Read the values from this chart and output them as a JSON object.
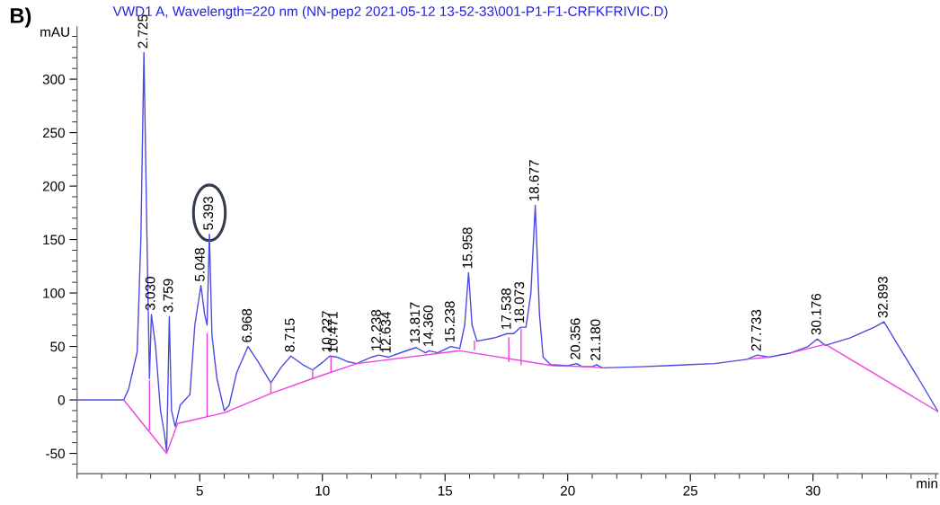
{
  "chart_data": {
    "type": "line",
    "title": "VWD1 A, Wavelength=220 nm (NN-pep2 2021-05-12 13-52-33\\001-P1-F1-CRFKFRIVIC.D)",
    "ylabel": "mAU",
    "xlabel": "min",
    "xlim": [
      0,
      35.1
    ],
    "ylim": [
      -69,
      349
    ],
    "xticks": [
      5,
      10,
      15,
      20,
      25,
      30
    ],
    "yticks": [
      -50,
      0,
      50,
      100,
      150,
      200,
      250,
      300
    ],
    "grid": false,
    "marker": "none",
    "line_style": "solid",
    "series": [
      {
        "color": "#4a4ae0",
        "x": [
          0,
          1.9,
          2.1,
          2.3,
          2.45,
          2.6,
          2.725,
          2.85,
          2.95,
          3.03,
          3.2,
          3.4,
          3.55,
          3.65,
          3.72,
          3.759,
          3.85,
          4.0,
          4.2,
          4.4,
          4.6,
          4.8,
          5.048,
          5.2,
          5.3,
          5.393,
          5.5,
          5.7,
          6.0,
          6.2,
          6.5,
          6.968,
          7.4,
          7.9,
          8.3,
          8.715,
          9.2,
          9.6,
          10.0,
          10.3,
          10.6,
          11.0,
          11.4,
          12.0,
          12.3,
          12.7,
          13.3,
          13.817,
          14.2,
          14.36,
          14.7,
          15.238,
          15.6,
          15.8,
          15.958,
          16.1,
          16.3,
          17.0,
          17.538,
          17.8,
          18.073,
          18.3,
          18.5,
          18.677,
          18.85,
          19.0,
          19.3,
          20.0,
          20.356,
          20.6,
          21.0,
          21.18,
          21.4,
          23,
          24,
          26,
          27.3,
          27.733,
          28.2,
          29.1,
          29.8,
          30.176,
          30.5,
          31.5,
          32.5,
          32.893,
          33.5,
          34.3,
          35.1
        ],
        "values": [
          0,
          0,
          10,
          30,
          45,
          150,
          325,
          150,
          20,
          80,
          50,
          -10,
          -30,
          -48,
          30,
          78,
          -10,
          -25,
          -5,
          0,
          5,
          70,
          107,
          80,
          70,
          155,
          60,
          20,
          -10,
          -5,
          25,
          50,
          35,
          16,
          30,
          41,
          33,
          28,
          35,
          41,
          40,
          36,
          34,
          40,
          42,
          40,
          45,
          49,
          44,
          46,
          44,
          50,
          48,
          70,
          119,
          70,
          55,
          58,
          62,
          62,
          68,
          68,
          100,
          182,
          80,
          40,
          33,
          32,
          34,
          31,
          31,
          33,
          30,
          31,
          32,
          34,
          38,
          42,
          40,
          44,
          50,
          57,
          51,
          58,
          68,
          73,
          50,
          20,
          -11
        ]
      },
      {
        "color": "#ee44dd",
        "x": [
          1.9,
          3.65,
          4.1,
          6.0,
          7.9,
          9.6,
          11.4,
          15.6,
          19.4,
          20.9,
          21.4,
          24,
          27.3,
          28.2,
          28.6,
          29.1,
          30.5,
          35.1,
          34,
          2.95,
          2.95,
          3.0,
          5.3,
          5.3,
          6.0,
          7.9,
          7.9,
          8.5,
          9.6,
          9.6,
          10.0,
          10.35,
          10.35,
          13,
          16.2,
          16.2,
          17.0,
          17.6,
          17.6,
          17.9,
          18.1,
          18.1
        ],
        "values": [
          0,
          -50,
          -22,
          -12,
          6,
          20,
          34,
          46,
          32,
          31,
          30,
          null,
          38,
          40,
          null,
          44,
          52,
          -11,
          null,
          -28,
          18,
          null,
          -15,
          62,
          null,
          6,
          16,
          null,
          20,
          28,
          null,
          26,
          40,
          null,
          47,
          55,
          null,
          36,
          58,
          null,
          33,
          66
        ]
      }
    ],
    "annotations": [
      "B)",
      {
        "text": "2.725",
        "x": 2.725,
        "y": 325
      },
      {
        "text": "3.030",
        "x": 3.03,
        "y": 80
      },
      {
        "text": "3.759",
        "x": 3.759,
        "y": 78
      },
      {
        "text": "5.048",
        "x": 5.048,
        "y": 107
      },
      {
        "text": "5.393",
        "x": 5.393,
        "y": 155
      },
      {
        "text": "6.968",
        "x": 6.968,
        "y": 50
      },
      {
        "text": "8.715",
        "x": 8.715,
        "y": 41
      },
      {
        "text": "10.227",
        "x": 10.227,
        "y": 41
      },
      {
        "text": "10.471",
        "x": 10.471,
        "y": 40
      },
      {
        "text": "12.238",
        "x": 12.238,
        "y": 42
      },
      {
        "text": "12.634",
        "x": 12.634,
        "y": 40
      },
      {
        "text": "13.817",
        "x": 13.817,
        "y": 49
      },
      {
        "text": "14.360",
        "x": 14.36,
        "y": 46
      },
      {
        "text": "15.238",
        "x": 15.238,
        "y": 50
      },
      {
        "text": "15.958",
        "x": 15.958,
        "y": 119
      },
      {
        "text": "17.538",
        "x": 17.538,
        "y": 62
      },
      {
        "text": "18.073",
        "x": 18.073,
        "y": 68
      },
      {
        "text": "18.677",
        "x": 18.677,
        "y": 182
      },
      {
        "text": "20.356",
        "x": 20.356,
        "y": 34
      },
      {
        "text": "21.180",
        "x": 21.18,
        "y": 33
      },
      {
        "text": "27.733",
        "x": 27.733,
        "y": 42
      },
      {
        "text": "30.176",
        "x": 30.176,
        "y": 57
      },
      {
        "text": "32.893",
        "x": 32.893,
        "y": 73
      }
    ]
  }
}
